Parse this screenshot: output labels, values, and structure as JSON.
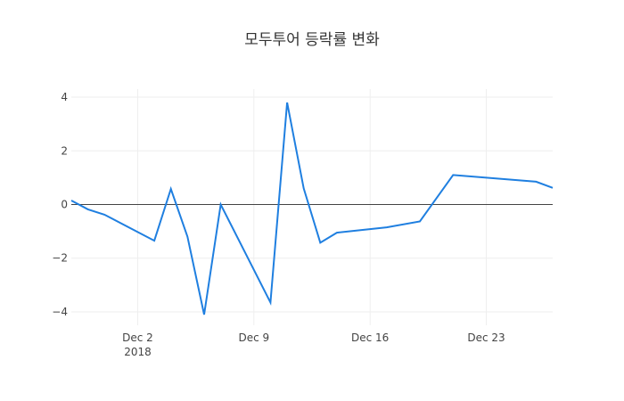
{
  "chart_data": {
    "type": "line",
    "title": "모두투어 등락률 변화",
    "xlabel": "",
    "ylabel": "",
    "x": [
      "2018-11-28",
      "2018-11-29",
      "2018-11-30",
      "2018-12-03",
      "2018-12-04",
      "2018-12-05",
      "2018-12-06",
      "2018-12-07",
      "2018-12-10",
      "2018-12-11",
      "2018-12-12",
      "2018-12-13",
      "2018-12-14",
      "2018-12-17",
      "2018-12-19",
      "2018-12-21",
      "2018-12-26",
      "2018-12-27"
    ],
    "series": [
      {
        "values": [
          0.15,
          -0.18,
          -0.38,
          -1.35,
          0.58,
          -1.2,
          -4.1,
          0.0,
          -3.65,
          3.8,
          0.6,
          -1.42,
          -1.05,
          -0.85,
          -0.63,
          1.1,
          0.85,
          0.62
        ],
        "color": "#1f7fe0"
      }
    ],
    "xlim": [
      "2018-11-28",
      "2018-12-27"
    ],
    "ylim": [
      -4.5,
      4.3
    ],
    "y_ticks": [
      4,
      2,
      0,
      -2,
      -4
    ],
    "y_tick_labels": [
      "4",
      "2",
      "0",
      "−2",
      "−4"
    ],
    "x_ticks": [
      "2018-12-02",
      "2018-12-09",
      "2018-12-16",
      "2018-12-23"
    ],
    "x_tick_labels": [
      "Dec 2",
      "Dec 9",
      "Dec 16",
      "Dec 23"
    ],
    "x_tick_sublabel": "2018",
    "zero_line": true,
    "grid": true,
    "colors": {
      "line": "#1f7fe0",
      "grid": "#eeeeee",
      "zeroline": "#444444"
    }
  }
}
